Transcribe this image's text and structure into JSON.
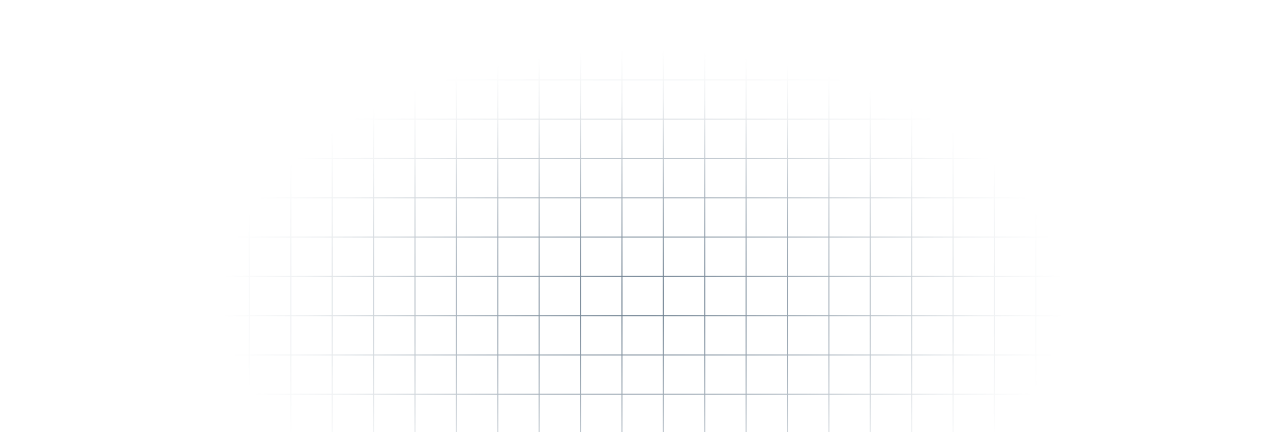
{
  "background": {
    "color": "#ffffff",
    "grid_line_color": "#5f7385",
    "pattern": "square-grid",
    "fade": "radial"
  }
}
